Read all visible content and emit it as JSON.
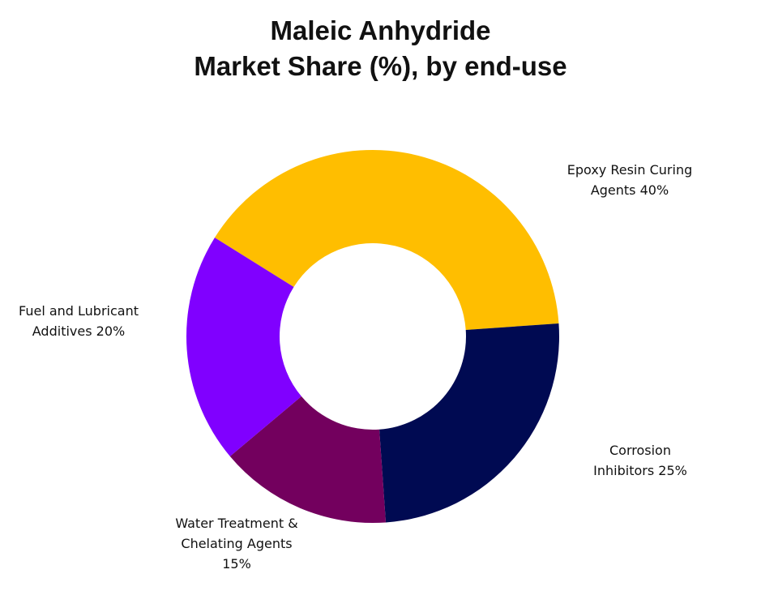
{
  "chart_data": {
    "type": "donut",
    "title": [
      "Maleic Anhydride",
      "Market Share (%), by end-use"
    ],
    "categories": [
      "Epoxy Resin Curing Agents",
      "Corrosion Inhibitors",
      "Water Treatment & Chelating Agents",
      "Fuel and Lubricant Additives"
    ],
    "values": [
      40,
      25,
      15,
      20
    ],
    "value_labels": [
      "40%",
      "25%",
      "15%",
      "20%"
    ],
    "colors": [
      "#ffbe00",
      "#000a52",
      "#73005e",
      "#8000ff"
    ]
  }
}
